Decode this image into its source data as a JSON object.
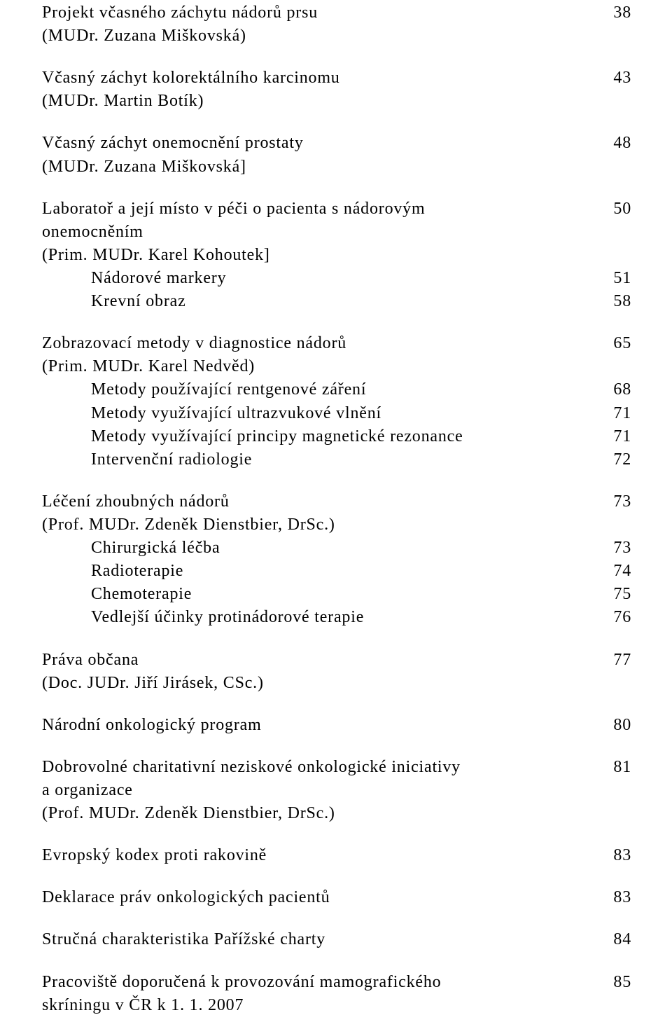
{
  "entries": [
    {
      "title": "Projekt včasného záchytu nádorů prsu",
      "page": "38",
      "author": "(MUDr. Zuzana Miškovská)"
    },
    {
      "title": "Včasný záchyt kolorektálního karcinomu",
      "page": "43",
      "author": "(MUDr. Martin Botík)"
    },
    {
      "title": "Včasný záchyt onemocnění prostaty",
      "page": "48",
      "author": "(MUDr. Zuzana Miškovská]"
    },
    {
      "title": "Laboratoř a její místo v péči o pacienta s nádorovým",
      "page": "50",
      "cont": "onemocněním",
      "author": "(Prim. MUDr. Karel Kohoutek]",
      "subs": [
        {
          "title": "Nádorové markery",
          "page": "51"
        },
        {
          "title": "Krevní obraz",
          "page": "58"
        }
      ]
    },
    {
      "title": "Zobrazovací metody v diagnostice nádorů",
      "page": "65",
      "author": "(Prim. MUDr. Karel Nedvěd)",
      "subs": [
        {
          "title": "Metody používající rentgenové záření",
          "page": "68"
        },
        {
          "title": "Metody využívající ultrazvukové vlnění",
          "page": "71"
        },
        {
          "title": "Metody využívající principy magnetické rezonance",
          "page": "71"
        },
        {
          "title": "Intervenční radiologie",
          "page": "72"
        }
      ]
    },
    {
      "title": "Léčení zhoubných nádorů",
      "page": "73",
      "author": "(Prof. MUDr. Zdeněk Dienstbier, DrSc.)",
      "subs": [
        {
          "title": "Chirurgická léčba",
          "page": "73"
        },
        {
          "title": "Radioterapie",
          "page": "74"
        },
        {
          "title": "Chemoterapie",
          "page": "75"
        },
        {
          "title": "Vedlejší účinky protinádorové terapie",
          "page": "76"
        }
      ]
    },
    {
      "title": "Práva občana",
      "page": "77",
      "author": "(Doc. JUDr. Jiří Jirásek, CSc.)"
    },
    {
      "title": "Národní onkologický program",
      "page": "80"
    },
    {
      "title": "Dobrovolné charitativní neziskové onkologické iniciativy",
      "page": "81",
      "cont": "a  organizace",
      "author": "(Prof. MUDr. Zdeněk Dienstbier, DrSc.)"
    },
    {
      "title": "Evropský kodex proti rakovině",
      "page": "83"
    },
    {
      "title": "Deklarace práv onkologických pacientů",
      "page": "83"
    },
    {
      "title": "Stručná charakteristika Pařížské charty",
      "page": "84"
    },
    {
      "title": "Pracoviště doporučená k provozování mamografického",
      "page": "85",
      "cont": "skríningu v ČR k 1. 1. 2007"
    }
  ]
}
